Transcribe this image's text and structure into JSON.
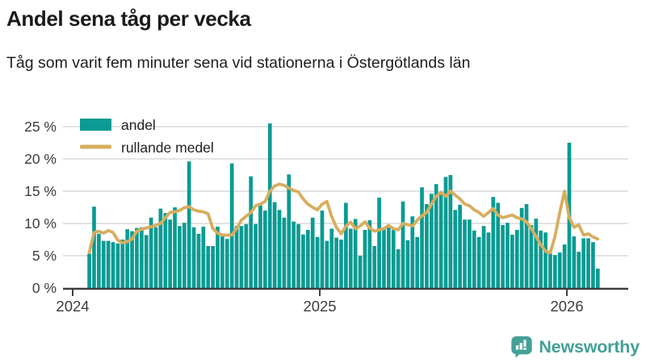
{
  "header": {
    "title": "Andel sena tåg per vecka",
    "subtitle": "Tåg som varit fem minuter sena vid stationerna i Östergötlands län"
  },
  "branding": {
    "logo_text": "Newsworthy",
    "logo_icon": "newsworthy-speech-bubble-chart-icon",
    "color": "#43a096"
  },
  "colors": {
    "bar": "#0a9b93",
    "line": "#d7ad5e",
    "grid": "#e3e3e3",
    "axis": "#3f3f3f",
    "tick_text": "#3d3d3d"
  },
  "chart_data": {
    "type": "bar",
    "title": "Andel sena tåg per vecka",
    "subtitle": "Tåg som varit fem minuter sena vid stationerna i Östergötlands län",
    "unit": "%",
    "x_unit": "week",
    "grid": true,
    "legend_position": "top-left",
    "ylim": [
      0,
      27
    ],
    "yticks": [
      0,
      5,
      10,
      15,
      20,
      25
    ],
    "ytick_format": "{v} %",
    "x_ticks": [
      {
        "label": "2024",
        "week": -3.5
      },
      {
        "label": "2025",
        "week": 48.5
      },
      {
        "label": "2026",
        "week": 100.5
      }
    ],
    "series": [
      {
        "name": "andel",
        "type": "bar",
        "color": "#0a9b93",
        "values": [
          5.3,
          12.6,
          8.4,
          7.3,
          7.3,
          7.1,
          6.9,
          7.5,
          9.1,
          8.8,
          9.3,
          9.4,
          8.2,
          10.9,
          9.4,
          12.3,
          11.6,
          10.6,
          12.5,
          9.6,
          10.1,
          19.6,
          9.4,
          8.4,
          9.5,
          6.5,
          6.5,
          9.5,
          8.0,
          7.6,
          19.3,
          9.6,
          9.6,
          9.9,
          17.3,
          9.9,
          12.8,
          12.0,
          25.5,
          13.3,
          12.1,
          10.9,
          17.6,
          10.3,
          9.9,
          8.3,
          9.0,
          10.9,
          7.9,
          12.0,
          7.3,
          9.2,
          7.8,
          7.5,
          13.2,
          9.2,
          10.7,
          5.0,
          9.0,
          10.5,
          6.5,
          14.0,
          9.4,
          9.4,
          9.0,
          6.0,
          13.4,
          7.4,
          11.1,
          7.9,
          15.6,
          13.0,
          14.6,
          16.1,
          14.9,
          17.2,
          17.5,
          12.1,
          12.9,
          10.6,
          10.6,
          8.9,
          7.9,
          9.6,
          8.6,
          14.1,
          13.2,
          9.75,
          10.1,
          8.25,
          9.0,
          12.4,
          13.0,
          9.75,
          10.75,
          8.9,
          8.6,
          5.4,
          5.1,
          5.5,
          6.75,
          22.5,
          8.0,
          5.6,
          7.7,
          7.7,
          7.1,
          3.0
        ]
      },
      {
        "name": "rullande medel",
        "type": "line",
        "color": "#d7ad5e",
        "values": [
          5.5,
          8.6,
          8.8,
          8.5,
          8.9,
          8.6,
          7.4,
          7.0,
          7.2,
          7.6,
          8.8,
          9.1,
          9.3,
          9.5,
          9.7,
          10.0,
          10.9,
          11.7,
          11.8,
          12.0,
          12.45,
          12.6,
          12.1,
          11.9,
          11.8,
          11.5,
          9.2,
          8.5,
          8.2,
          8.2,
          8.2,
          9.2,
          10.5,
          11.1,
          11.7,
          12.75,
          13.0,
          13.4,
          15.0,
          15.8,
          16.1,
          15.9,
          15.5,
          15.1,
          14.9,
          13.8,
          13.0,
          12.5,
          12.1,
          13.0,
          13.4,
          11.1,
          9.4,
          8.4,
          9.6,
          10.2,
          9.2,
          9.6,
          10.25,
          9.3,
          8.8,
          9.0,
          9.2,
          9.7,
          9.2,
          9.0,
          10.0,
          9.8,
          9.6,
          10.5,
          11.2,
          11.7,
          13.0,
          14.2,
          14.8,
          14.2,
          15.0,
          14.4,
          13.8,
          13.0,
          12.75,
          12.1,
          11.7,
          11.1,
          11.7,
          12.3,
          11.3,
          10.9,
          11.1,
          11.3,
          10.9,
          10.7,
          10.25,
          9.2,
          8.0,
          6.7,
          5.7,
          5.45,
          8.0,
          11.7,
          15.0,
          10.9,
          9.4,
          9.8,
          8.2,
          8.4,
          7.9,
          7.6
        ]
      }
    ]
  }
}
